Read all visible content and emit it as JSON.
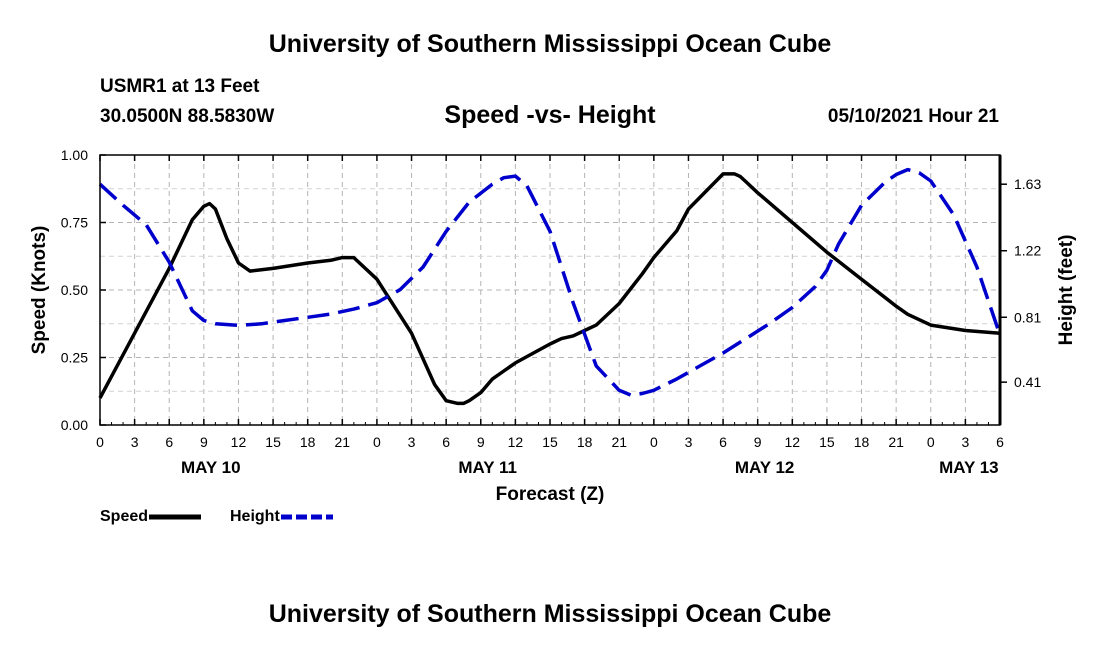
{
  "page": {
    "top_title": "University of Southern Mississippi Ocean Cube",
    "bottom_title": "University of Southern Mississippi Ocean Cube",
    "station": "USMR1 at 13 Feet",
    "coords": "30.0500N  88.5830W",
    "subtitle": "Speed -vs- Height",
    "datetime": "05/10/2021 Hour 21"
  },
  "chart_data": {
    "type": "line",
    "title": "Speed -vs- Height",
    "xlabel": "Forecast (Z)",
    "ylabel": "Speed (Knots)",
    "y2label": "Height (feet)",
    "x_unit": "hours since 2021-05-10 00Z",
    "xlim": [
      0,
      78
    ],
    "x_ticks": [
      0,
      3,
      6,
      9,
      12,
      15,
      18,
      21,
      24,
      27,
      30,
      33,
      36,
      39,
      42,
      45,
      48,
      51,
      54,
      57,
      60,
      63,
      66,
      69,
      72,
      75,
      78
    ],
    "x_tick_labels": [
      "0",
      "3",
      "6",
      "9",
      "12",
      "15",
      "18",
      "21",
      "0",
      "3",
      "6",
      "9",
      "12",
      "15",
      "18",
      "21",
      "0",
      "3",
      "6",
      "9",
      "12",
      "15",
      "18",
      "21",
      "0",
      "3",
      "6"
    ],
    "date_labels": [
      {
        "x": 9.6,
        "label": "MAY 10"
      },
      {
        "x": 33.6,
        "label": "MAY 11"
      },
      {
        "x": 57.6,
        "label": "MAY 12"
      },
      {
        "x": 75.3,
        "label": "MAY 13"
      }
    ],
    "ylim": [
      0,
      1
    ],
    "y_ticks": [
      0,
      0.25,
      0.5,
      0.75,
      1
    ],
    "y_tick_labels": [
      "0.00",
      "0.25",
      "0.50",
      "0.75",
      "1.00"
    ],
    "y2lim": [
      0.146,
      1.81
    ],
    "y2_ticks": [
      0.41,
      0.81,
      1.22,
      1.63
    ],
    "y2_tick_labels": [
      "0.41",
      "0.81",
      "1.22",
      "1.63"
    ],
    "grid": true,
    "legend": [
      {
        "name": "Speed",
        "color": "#000000",
        "style": "solid"
      },
      {
        "name": "Height",
        "color": "#0000CC",
        "style": "dashed"
      }
    ],
    "series": [
      {
        "name": "Speed",
        "axis": "left",
        "color": "#000000",
        "style": "solid",
        "x": [
          0,
          3,
          6,
          8,
          9,
          9.5,
          10,
          11,
          12,
          13,
          15,
          18,
          20,
          21,
          22,
          24,
          27,
          29,
          30,
          31,
          31.5,
          32,
          33,
          34,
          35,
          36,
          39,
          40,
          41,
          42,
          43,
          45,
          47,
          48,
          50,
          51,
          54,
          55,
          55.5,
          56,
          57,
          60,
          63,
          66,
          69,
          70,
          72,
          75,
          78
        ],
        "y": [
          0.1,
          0.34,
          0.58,
          0.76,
          0.81,
          0.82,
          0.8,
          0.69,
          0.6,
          0.57,
          0.58,
          0.6,
          0.61,
          0.62,
          0.62,
          0.54,
          0.34,
          0.15,
          0.09,
          0.08,
          0.08,
          0.09,
          0.12,
          0.17,
          0.2,
          0.23,
          0.3,
          0.32,
          0.33,
          0.35,
          0.37,
          0.45,
          0.56,
          0.62,
          0.72,
          0.8,
          0.93,
          0.93,
          0.92,
          0.9,
          0.86,
          0.75,
          0.64,
          0.54,
          0.44,
          0.41,
          0.37,
          0.35,
          0.34
        ]
      },
      {
        "name": "Height",
        "axis": "right",
        "color": "#0000CC",
        "style": "dashed",
        "x": [
          0,
          2,
          4,
          6,
          8,
          9,
          10,
          12,
          14,
          16,
          18,
          20,
          22,
          24,
          26,
          28,
          30,
          32,
          34,
          35,
          36,
          37,
          39,
          41,
          43,
          45,
          46,
          47,
          48,
          50,
          52,
          54,
          56,
          58,
          60,
          62,
          63,
          64,
          66,
          68,
          69,
          70,
          71,
          72,
          74,
          76,
          78
        ],
        "y": [
          1.63,
          1.5,
          1.38,
          1.15,
          0.85,
          0.79,
          0.77,
          0.76,
          0.77,
          0.79,
          0.81,
          0.83,
          0.86,
          0.9,
          0.98,
          1.12,
          1.34,
          1.52,
          1.63,
          1.67,
          1.68,
          1.62,
          1.34,
          0.9,
          0.51,
          0.36,
          0.33,
          0.34,
          0.36,
          0.43,
          0.51,
          0.59,
          0.68,
          0.77,
          0.87,
          1.0,
          1.1,
          1.26,
          1.5,
          1.64,
          1.69,
          1.72,
          1.7,
          1.65,
          1.44,
          1.12,
          0.7
        ]
      }
    ]
  }
}
